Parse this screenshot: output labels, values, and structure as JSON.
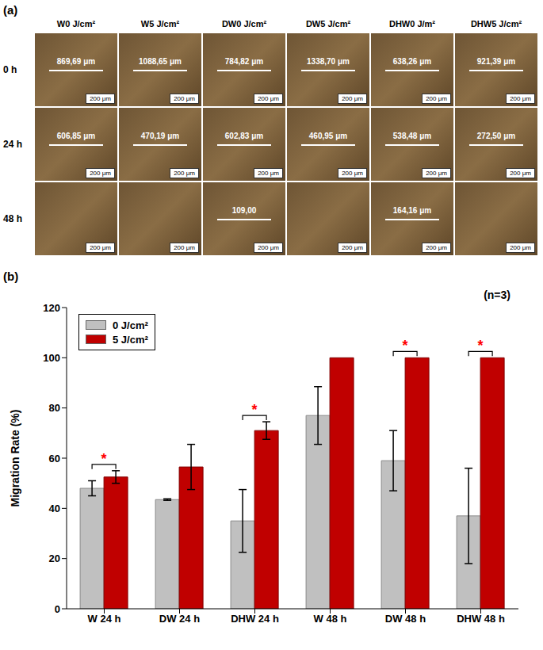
{
  "panel_a": {
    "panel_label": "(a)",
    "columns": [
      "W0 J/cm²",
      "W5 J/cm²",
      "DW0 J/cm²",
      "DW5 J/cm²",
      "DHW0 J/m²",
      "DHW5 J/cm²"
    ],
    "rows": [
      {
        "label": "0 h",
        "measurements": [
          "869,69 μm",
          "1088,65 μm",
          "784,82 μm",
          "1338,70 μm",
          "638,26 μm",
          "921,39 μm"
        ]
      },
      {
        "label": "24 h",
        "measurements": [
          "606,85 μm",
          "470,19 μm",
          "602,83 μm",
          "460,95 μm",
          "538,48 μm",
          "272,50 μm"
        ]
      },
      {
        "label": "48 h",
        "measurements": [
          null,
          null,
          "109,00",
          null,
          "164,16 μm",
          null
        ]
      }
    ],
    "scale_bar": "200 μm"
  },
  "chart_data": {
    "panel_label": "(b)",
    "type": "bar",
    "annotation": "(n=3)",
    "y_label": "Migration Rate (%)",
    "categories": [
      "W 24 h",
      "DW 24 h",
      "DHW 24 h",
      "W 48 h",
      "DW 48 h",
      "DHW 48 h"
    ],
    "series": [
      {
        "name": "0 J/cm²",
        "color": "#c0c0c0",
        "values": [
          48,
          43.5,
          35,
          77,
          59,
          37
        ],
        "errors": [
          3,
          0.3,
          12.5,
          11.5,
          12,
          19
        ]
      },
      {
        "name": "5 J/cm²",
        "color": "#c00000",
        "values": [
          52.5,
          56.5,
          71,
          100,
          100,
          100
        ],
        "errors": [
          2.5,
          9,
          3.5,
          0,
          0,
          0
        ]
      }
    ],
    "significance": {
      "label": "*",
      "marks": [
        true,
        false,
        true,
        false,
        true,
        true
      ]
    },
    "ylim": [
      0,
      120
    ],
    "yticks": [
      0,
      20,
      40,
      60,
      80,
      100,
      120
    ],
    "grid": false,
    "legend": "top-left"
  }
}
